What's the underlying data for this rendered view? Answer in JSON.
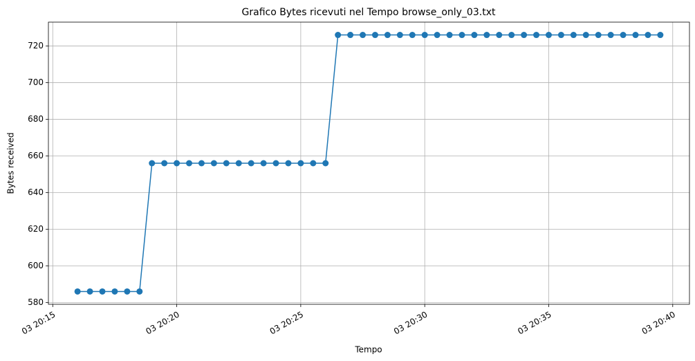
{
  "chart_data": {
    "type": "line",
    "title": "Grafico Bytes ricevuti nel Tempo browse_only_03.txt",
    "xlabel": "Tempo",
    "ylabel": "Bytes received",
    "x": [
      "03 20:16:00",
      "03 20:16:30",
      "03 20:17:00",
      "03 20:17:30",
      "03 20:18:00",
      "03 20:18:30",
      "03 20:19:00",
      "03 20:19:30",
      "03 20:20:00",
      "03 20:20:30",
      "03 20:21:00",
      "03 20:21:30",
      "03 20:22:00",
      "03 20:22:30",
      "03 20:23:00",
      "03 20:23:30",
      "03 20:24:00",
      "03 20:24:30",
      "03 20:25:00",
      "03 20:25:30",
      "03 20:26:00",
      "03 20:26:30",
      "03 20:27:00",
      "03 20:27:30",
      "03 20:28:00",
      "03 20:28:30",
      "03 20:29:00",
      "03 20:29:30",
      "03 20:30:00",
      "03 20:30:30",
      "03 20:31:00",
      "03 20:31:30",
      "03 20:32:00",
      "03 20:32:30",
      "03 20:33:00",
      "03 20:33:30",
      "03 20:34:00",
      "03 20:34:30",
      "03 20:35:00",
      "03 20:35:30",
      "03 20:36:00",
      "03 20:36:30",
      "03 20:37:00",
      "03 20:37:30",
      "03 20:38:00",
      "03 20:38:30",
      "03 20:39:00",
      "03 20:39:30"
    ],
    "values": [
      586,
      586,
      586,
      586,
      586,
      586,
      656,
      656,
      656,
      656,
      656,
      656,
      656,
      656,
      656,
      656,
      656,
      656,
      656,
      656,
      656,
      726,
      726,
      726,
      726,
      726,
      726,
      726,
      726,
      726,
      726,
      726,
      726,
      726,
      726,
      726,
      726,
      726,
      726,
      726,
      726,
      726,
      726,
      726,
      726,
      726,
      726,
      726
    ],
    "color": "#1f77b4",
    "xlim": [
      "03 20:14:49.5",
      "03 20:40:40.5"
    ],
    "xticks": [
      "03 20:15",
      "03 20:20",
      "03 20:25",
      "03 20:30",
      "03 20:35",
      "03 20:40"
    ],
    "ylim": [
      579,
      733
    ],
    "yticks": [
      580,
      600,
      620,
      640,
      660,
      680,
      700,
      720
    ],
    "grid": true
  }
}
